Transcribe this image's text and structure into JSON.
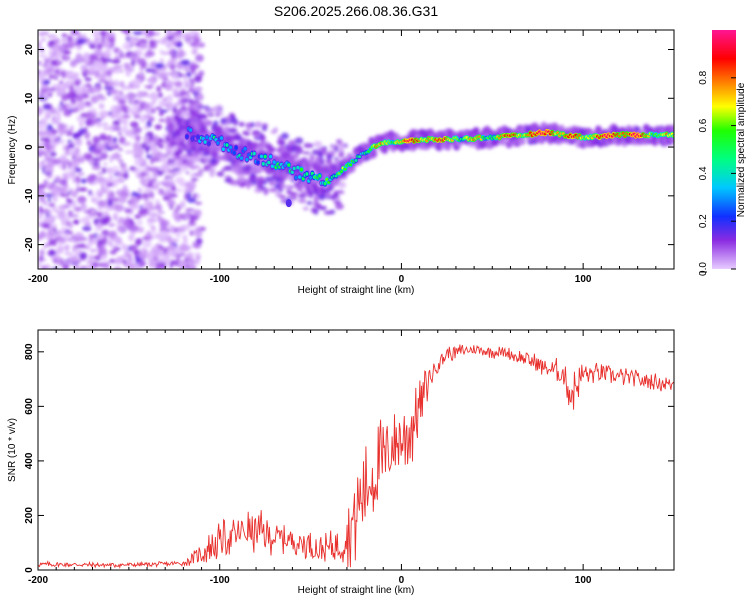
{
  "title": "S206.2025.266.08.36.G31",
  "chart_data": [
    {
      "type": "heatmap",
      "name": "spectrogram",
      "xlabel": "Height of straight line (km)",
      "ylabel": "Frequency (Hz)",
      "xlim": [
        -200,
        150
      ],
      "ylim": [
        -25,
        24
      ],
      "xticks": [
        -200,
        -100,
        0,
        100
      ],
      "yticks": [
        -20,
        -10,
        0,
        10,
        20
      ],
      "xtick_labels": [
        "-200",
        "-100",
        "0",
        "100"
      ],
      "ytick_labels": [
        "-20",
        "-10",
        "0",
        "10",
        "20"
      ],
      "colorbar": {
        "label": "Normalized spectral amplitude",
        "range": [
          0,
          1
        ],
        "ticks": [
          0.0,
          0.2,
          0.4,
          0.6,
          0.8
        ],
        "tick_labels": [
          "0.0",
          "0.2",
          "0.4",
          "0.6",
          "0.8"
        ],
        "colormap": "rainbow (purple-blue-cyan-green-yellow-red-magenta)"
      },
      "ridge": {
        "description": "dominant frequency ridge vs height",
        "x": [
          -120,
          -110,
          -100,
          -90,
          -80,
          -70,
          -60,
          -50,
          -40,
          -30,
          -20,
          -10,
          0,
          10,
          20,
          40,
          60,
          80,
          100,
          120,
          150
        ],
        "y": [
          3,
          2,
          1,
          -1,
          -2,
          -3,
          -5,
          -6,
          -7,
          -4,
          -1,
          1,
          1,
          1.5,
          1.5,
          1.8,
          2.2,
          3,
          2,
          2.5,
          2.5
        ],
        "amplitude": [
          0.15,
          0.3,
          0.35,
          0.3,
          0.35,
          0.4,
          0.4,
          0.45,
          0.55,
          0.5,
          0.55,
          0.7,
          0.75,
          0.85,
          0.8,
          0.6,
          0.75,
          0.9,
          0.7,
          0.95,
          0.6
        ]
      },
      "noise_region": {
        "x": [
          -200,
          -120
        ],
        "amplitude": "0.0-0.2 scattered over full frequency range"
      }
    },
    {
      "type": "line",
      "name": "snr",
      "xlabel": "Height of straight line (km)",
      "ylabel": "SNR (10 * v/v)",
      "xlim": [
        -200,
        150
      ],
      "ylim": [
        0,
        880
      ],
      "xticks": [
        -200,
        -100,
        0,
        100
      ],
      "yticks": [
        0,
        200,
        400,
        600,
        800
      ],
      "xtick_labels": [
        "-200",
        "-100",
        "0",
        "100"
      ],
      "ytick_labels": [
        "0",
        "200",
        "400",
        "600",
        "800"
      ],
      "color": "#e8302d",
      "series": [
        {
          "name": "SNR",
          "x": [
            -200,
            -180,
            -160,
            -140,
            -130,
            -120,
            -115,
            -110,
            -100,
            -90,
            -85,
            -80,
            -75,
            -70,
            -60,
            -50,
            -45,
            -40,
            -35,
            -30,
            -25,
            -20,
            -15,
            -10,
            -5,
            0,
            5,
            10,
            15,
            20,
            25,
            30,
            40,
            50,
            60,
            70,
            80,
            90,
            93,
            100,
            110,
            120,
            130,
            140,
            150
          ],
          "mean": [
            20,
            20,
            18,
            20,
            22,
            25,
            40,
            60,
            110,
            130,
            150,
            140,
            130,
            120,
            110,
            90,
            70,
            80,
            90,
            130,
            200,
            300,
            350,
            400,
            460,
            480,
            520,
            600,
            700,
            760,
            790,
            800,
            810,
            800,
            790,
            770,
            740,
            720,
            640,
            720,
            720,
            710,
            700,
            690,
            680
          ],
          "amp": [
            12,
            10,
            10,
            10,
            10,
            10,
            25,
            45,
            80,
            70,
            100,
            80,
            90,
            60,
            60,
            60,
            60,
            60,
            80,
            120,
            200,
            180,
            200,
            180,
            150,
            170,
            170,
            110,
            70,
            40,
            35,
            30,
            25,
            25,
            30,
            35,
            40,
            60,
            100,
            50,
            40,
            35,
            35,
            35,
            35
          ]
        }
      ]
    }
  ]
}
